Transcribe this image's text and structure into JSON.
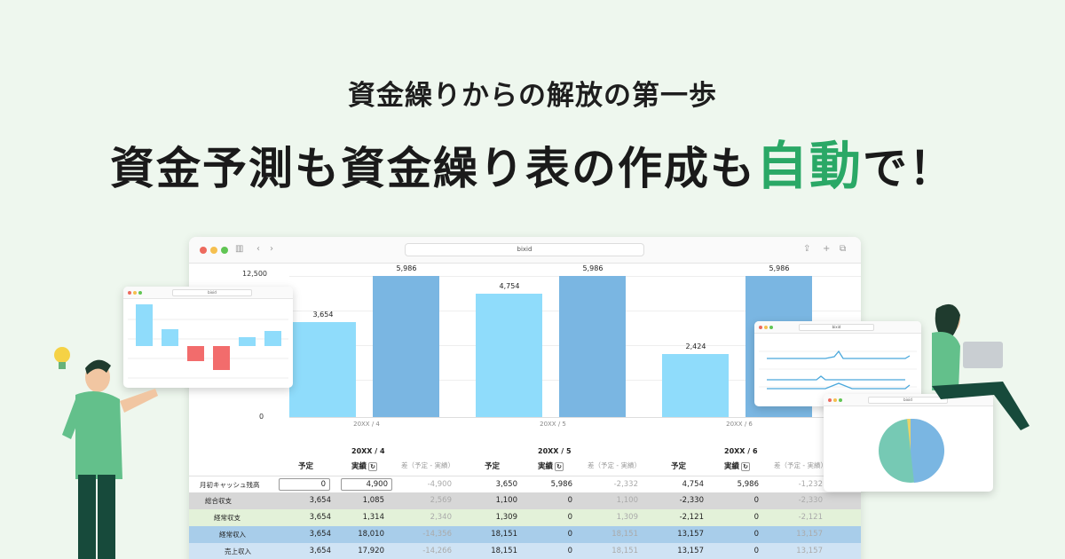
{
  "headline": {
    "sub": "資金繰りからの解放の第一歩",
    "main_before": "資金予測も資金繰り表の作成も",
    "main_accent": "自動",
    "main_after": "で！"
  },
  "browser": {
    "url": "bixid"
  },
  "chart_data": {
    "type": "bar",
    "categories": [
      "20XX / 4",
      "20XX / 5",
      "20XX / 6"
    ],
    "series": [
      {
        "values": [
          3654,
          4754,
          2424
        ]
      },
      {
        "values": [
          5986,
          5986,
          5986
        ]
      }
    ],
    "ylim": [
      0,
      12500
    ],
    "yticks": [
      "12,500",
      "0"
    ],
    "colors": [
      "#8fdcfb",
      "#7ab6e2"
    ]
  },
  "table": {
    "periods": [
      "20XX / 4",
      "20XX / 5",
      "20XX / 6"
    ],
    "col_plan": "予定",
    "col_actual": "実績",
    "col_diff": "差（予定 - 実績）",
    "rows": [
      {
        "label": "月初キャッシュ残高",
        "values": [
          "0",
          "4,900",
          "-4,900",
          "3,650",
          "5,986",
          "-2,332",
          "4,754",
          "5,986",
          "-1,232"
        ]
      },
      {
        "label": "総合収支",
        "values": [
          "3,654",
          "1,085",
          "2,569",
          "1,100",
          "0",
          "1,100",
          "-2,330",
          "0",
          "-2,330"
        ]
      },
      {
        "label": "経常収支",
        "values": [
          "3,654",
          "1,314",
          "2,340",
          "1,309",
          "0",
          "1,309",
          "-2,121",
          "0",
          "-2,121"
        ]
      },
      {
        "label": "経常収入",
        "values": [
          "3,654",
          "18,010",
          "-14,356",
          "18,151",
          "0",
          "18,151",
          "13,157",
          "0",
          "13,157"
        ]
      },
      {
        "label": "売上収入",
        "values": [
          "3,654",
          "17,920",
          "-14,266",
          "18,151",
          "0",
          "18,151",
          "13,157",
          "0",
          "13,157"
        ]
      }
    ]
  },
  "mini_left": {
    "url": "bixid"
  },
  "mini_right_top": {
    "url": "bixid"
  },
  "mini_right_bottom": {
    "url": "bixid"
  },
  "colors": {
    "accent": "#2aa866",
    "dot_red": "#ed6a5e",
    "dot_yellow": "#f5bf4f",
    "dot_green": "#61c554"
  }
}
